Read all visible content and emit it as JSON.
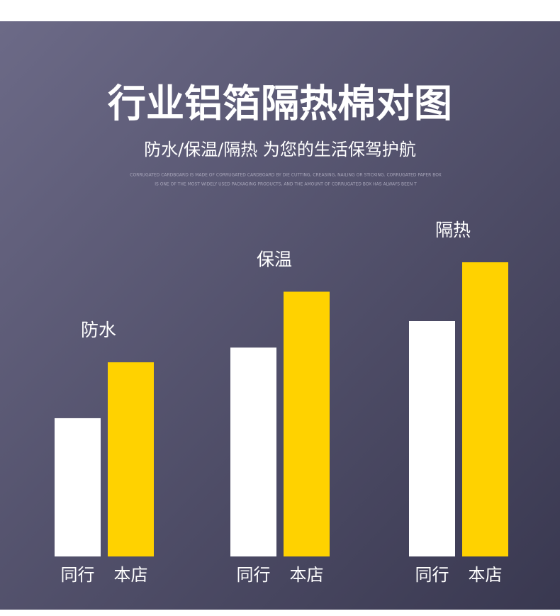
{
  "chart_data": {
    "type": "bar",
    "title": "行业铝箔隔热棉对图",
    "subtitle": "防水/保温/隔热  为您的生活保驾护航",
    "description": [
      "CORRUGATED CARDBOARD IS MADE OF CORRUGATED CARDBOARD BY DIE CUTTING, CREASING, NAILING OR STICKING. CORRUGATED PAPER BOX",
      "IS ONE OF THE MOST WIDELY USED PACKAGING PRODUCTS, AND THE AMOUNT OF CORRUGATED BOX HAS ALWAYS BEEN T"
    ],
    "categories": [
      "防水",
      "保温",
      "隔热"
    ],
    "series": [
      {
        "name": "同行",
        "color": "#ffffff",
        "values": [
          47,
          71,
          80
        ]
      },
      {
        "name": "本店",
        "color": "#ffd200",
        "values": [
          66,
          90,
          100
        ]
      }
    ]
  }
}
